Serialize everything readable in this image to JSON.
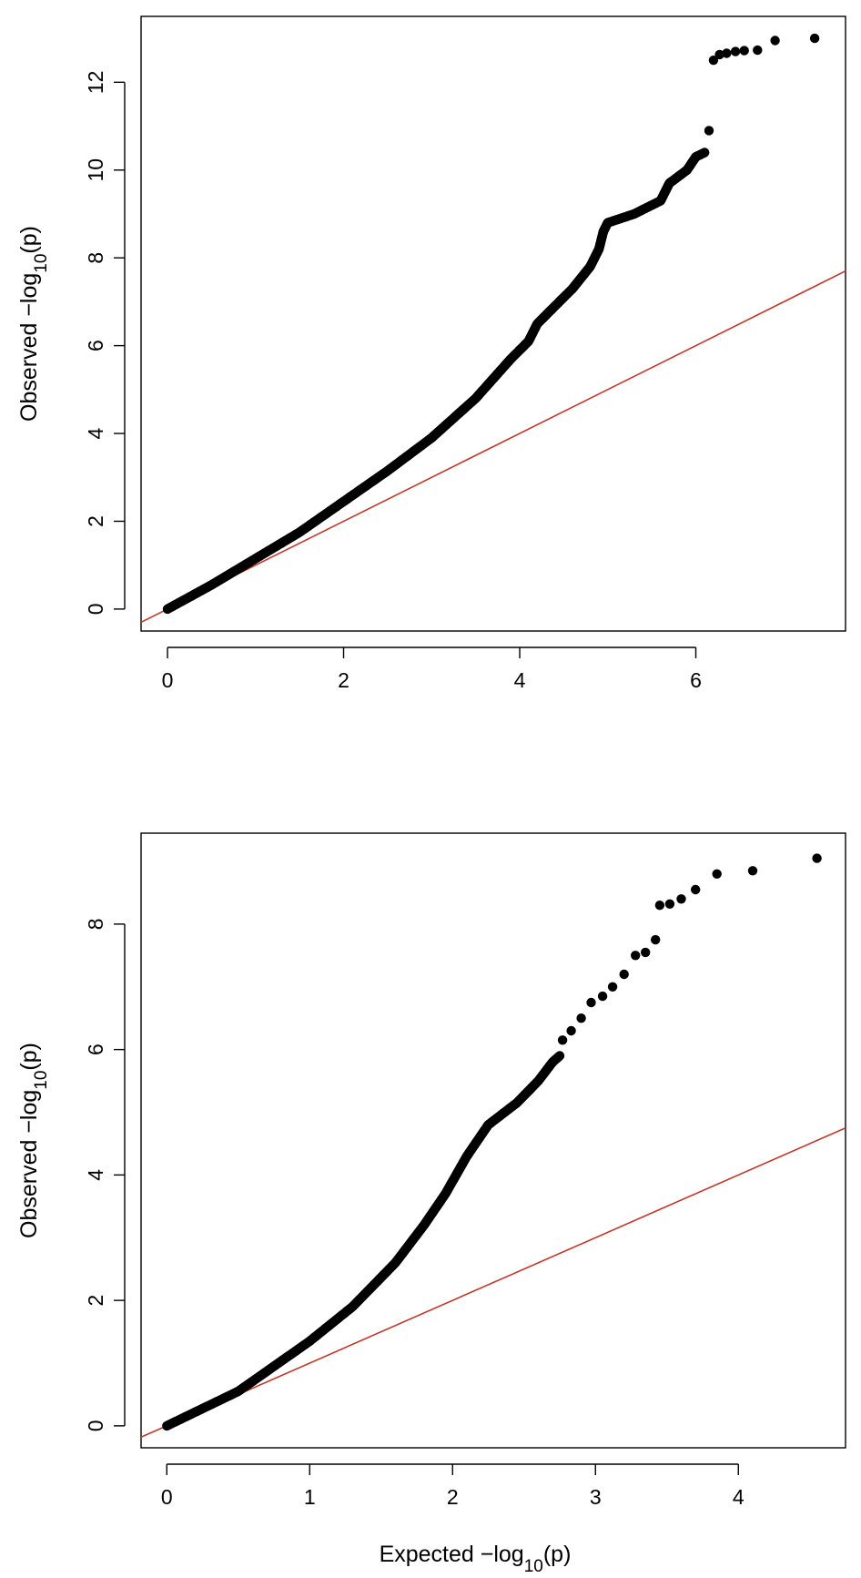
{
  "chart_data": [
    {
      "type": "scatter",
      "title": "",
      "xlabel": "",
      "ylabel": {
        "pre": "Observed  −log",
        "sub": "10",
        "post": "(p)"
      },
      "xlim": [
        -0.3,
        7.7
      ],
      "ylim": [
        -0.5,
        13.5
      ],
      "x_ticks": [
        0,
        2,
        4,
        6
      ],
      "y_ticks": [
        0,
        2,
        4,
        6,
        8,
        10,
        12
      ],
      "grid": false,
      "legend": "none",
      "reference_line": {
        "slope": 1,
        "intercept": 0,
        "color": "#c0392b"
      },
      "point_color": "#000000",
      "curve_points": [
        [
          0,
          0
        ],
        [
          0.5,
          0.55
        ],
        [
          1,
          1.15
        ],
        [
          1.5,
          1.75
        ],
        [
          2,
          2.45
        ],
        [
          2.5,
          3.15
        ],
        [
          3,
          3.9
        ],
        [
          3.5,
          4.8
        ],
        [
          3.9,
          5.7
        ],
        [
          4.1,
          6.1
        ],
        [
          4.2,
          6.5
        ],
        [
          4.4,
          6.9
        ],
        [
          4.6,
          7.3
        ],
        [
          4.8,
          7.8
        ],
        [
          4.9,
          8.2
        ],
        [
          4.95,
          8.6
        ],
        [
          5.0,
          8.8
        ],
        [
          5.3,
          9.0
        ],
        [
          5.6,
          9.3
        ],
        [
          5.7,
          9.7
        ],
        [
          5.9,
          10.0
        ],
        [
          6.0,
          10.3
        ],
        [
          6.1,
          10.4
        ]
      ],
      "points": [
        [
          6.15,
          10.9
        ],
        [
          6.2,
          12.5
        ],
        [
          6.27,
          12.63
        ],
        [
          6.35,
          12.66
        ],
        [
          6.45,
          12.7
        ],
        [
          6.55,
          12.72
        ],
        [
          6.7,
          12.73
        ],
        [
          6.9,
          12.95
        ],
        [
          7.35,
          13.0
        ]
      ]
    },
    {
      "type": "scatter",
      "title": "",
      "xlabel": {
        "pre": "Expected  −log",
        "sub": "10",
        "post": "(p)"
      },
      "ylabel": {
        "pre": "Observed  −log",
        "sub": "10",
        "post": "(p)"
      },
      "xlim": [
        -0.18,
        4.75
      ],
      "ylim": [
        -0.35,
        9.45
      ],
      "x_ticks": [
        0,
        1,
        2,
        3,
        4
      ],
      "y_ticks": [
        0,
        2,
        4,
        6,
        8
      ],
      "grid": false,
      "legend": "none",
      "reference_line": {
        "slope": 1,
        "intercept": 0,
        "color": "#c0392b"
      },
      "point_color": "#000000",
      "curve_points": [
        [
          0,
          0
        ],
        [
          0.5,
          0.55
        ],
        [
          1,
          1.35
        ],
        [
          1.3,
          1.9
        ],
        [
          1.6,
          2.6
        ],
        [
          1.8,
          3.2
        ],
        [
          1.95,
          3.7
        ],
        [
          2.1,
          4.3
        ],
        [
          2.25,
          4.8
        ],
        [
          2.45,
          5.15
        ],
        [
          2.6,
          5.5
        ],
        [
          2.7,
          5.8
        ],
        [
          2.75,
          5.9
        ]
      ],
      "points": [
        [
          2.77,
          6.15
        ],
        [
          2.83,
          6.3
        ],
        [
          2.9,
          6.5
        ],
        [
          2.97,
          6.75
        ],
        [
          3.05,
          6.85
        ],
        [
          3.12,
          7.0
        ],
        [
          3.2,
          7.2
        ],
        [
          3.28,
          7.5
        ],
        [
          3.35,
          7.55
        ],
        [
          3.42,
          7.75
        ],
        [
          3.45,
          8.3
        ],
        [
          3.52,
          8.32
        ],
        [
          3.6,
          8.4
        ],
        [
          3.7,
          8.55
        ],
        [
          3.85,
          8.8
        ],
        [
          4.1,
          8.85
        ],
        [
          4.55,
          9.05
        ]
      ]
    }
  ]
}
